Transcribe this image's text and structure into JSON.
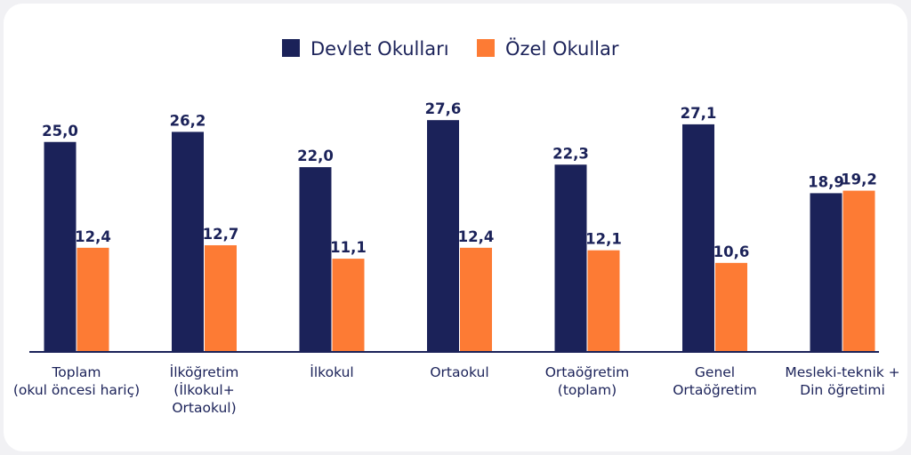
{
  "chart_data": {
    "type": "bar",
    "categories": [
      [
        "Toplam",
        "(okul öncesi hariç)"
      ],
      [
        "İlköğretim",
        "(İlkokul+",
        "Ortaokul)"
      ],
      [
        "İlkokul"
      ],
      [
        "Ortaokul"
      ],
      [
        "Ortaöğretim",
        "(toplam)"
      ],
      [
        "Genel",
        "Ortaöğretim"
      ],
      [
        "Mesleki-teknik +",
        "Din öğretimi"
      ]
    ],
    "series": [
      {
        "name": "Devlet Okulları",
        "color": "#1b2259",
        "values": [
          25.0,
          26.2,
          22.0,
          27.6,
          22.3,
          27.1,
          18.9
        ],
        "labels": [
          "25,0",
          "26,2",
          "22,0",
          "27,6",
          "22,3",
          "27,1",
          "18,9"
        ]
      },
      {
        "name": "Özel Okullar",
        "color": "#fd7b34",
        "values": [
          12.4,
          12.7,
          11.1,
          12.4,
          12.1,
          10.6,
          19.2
        ],
        "labels": [
          "12,4",
          "12,7",
          "11,1",
          "12,4",
          "12,1",
          "10,6",
          "19,2"
        ]
      }
    ],
    "ylim": [
      0,
      30
    ],
    "legend_position": "top-center",
    "grid": false
  }
}
